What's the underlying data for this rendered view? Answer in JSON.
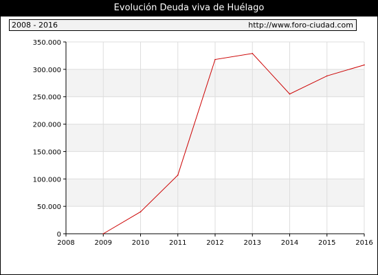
{
  "title": "Evolución Deuda viva de Huélago",
  "period_label": "2008 - 2016",
  "source_url": "http://www.foro-ciudad.com",
  "colors": {
    "line": "#cc0000",
    "band": "#f3f3f3",
    "grid": "#dddddd",
    "axis": "#000000"
  },
  "chart_data": {
    "type": "line",
    "title": "Evolución Deuda viva de Huélago",
    "xlabel": "",
    "ylabel": "",
    "x": [
      2009,
      2010,
      2011,
      2012,
      2013,
      2014,
      2015,
      2016
    ],
    "series": [
      {
        "values": [
          0,
          40000,
          107000,
          318000,
          329000,
          255000,
          288000,
          308000
        ]
      }
    ],
    "xlim": [
      2008,
      2016
    ],
    "ylim": [
      0,
      350000
    ],
    "x_ticks": [
      "2008",
      "2009",
      "2010",
      "2011",
      "2012",
      "2013",
      "2014",
      "2015",
      "2016"
    ],
    "y_ticks": [
      "0",
      "50.000",
      "100.000",
      "150.000",
      "200.000",
      "250.000",
      "300.000",
      "350.000"
    ],
    "grid": true
  }
}
